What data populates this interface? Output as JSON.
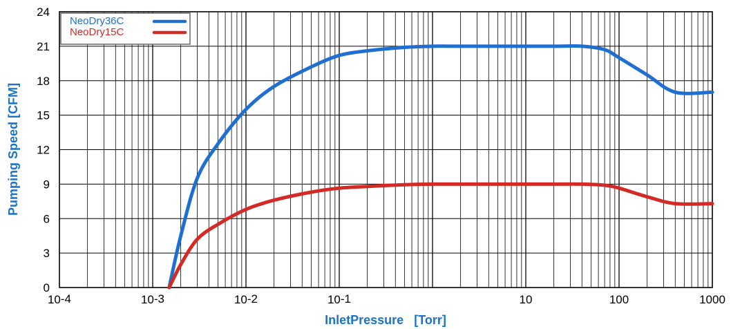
{
  "colors": {
    "series_blue": "#1f6fd2",
    "series_red": "#d42a26",
    "axis_title": "#1a73c8",
    "grid": "#000000",
    "legend_border": "#666666"
  },
  "chart_data": {
    "type": "line",
    "title": "",
    "xlabel": "InletPressure   [Torr]",
    "ylabel": "Pumping Speed [CFM]",
    "x_scale": "log",
    "xlim": [
      0.0001,
      1000
    ],
    "ylim": [
      0,
      24
    ],
    "grid": true,
    "legend_position": "top-left",
    "x_ticks": [
      {
        "value": 0.0001,
        "base": "10",
        "exp": "-4",
        "text": ""
      },
      {
        "value": 0.001,
        "base": "10",
        "exp": "-3",
        "text": ""
      },
      {
        "value": 0.01,
        "base": "10",
        "exp": "-2",
        "text": ""
      },
      {
        "value": 0.1,
        "base": "10",
        "exp": "-1",
        "text": ""
      },
      {
        "value": 10,
        "base": "",
        "exp": "",
        "text": "10"
      },
      {
        "value": 100,
        "base": "",
        "exp": "",
        "text": "100"
      },
      {
        "value": 1000,
        "base": "",
        "exp": "",
        "text": "1000"
      }
    ],
    "y_ticks": [
      0,
      3,
      6,
      9,
      12,
      15,
      18,
      21,
      24
    ],
    "series": [
      {
        "name": "NeoDry36C",
        "color": "#1f6fd2",
        "x": [
          0.0015,
          0.002,
          0.003,
          0.005,
          0.01,
          0.02,
          0.05,
          0.1,
          0.2,
          0.5,
          1,
          2,
          5,
          10,
          20,
          40,
          70,
          100,
          200,
          400,
          1000
        ],
        "y": [
          0,
          4.5,
          9.5,
          12.5,
          15.5,
          17.5,
          19.2,
          20.2,
          20.6,
          20.9,
          21,
          21,
          21,
          21,
          21,
          21,
          20.7,
          20.0,
          18.5,
          17.0,
          17.0
        ]
      },
      {
        "name": "NeoDry15C",
        "color": "#d42a26",
        "x": [
          0.0015,
          0.002,
          0.003,
          0.005,
          0.01,
          0.02,
          0.05,
          0.1,
          0.2,
          0.5,
          1,
          2,
          5,
          10,
          20,
          40,
          70,
          100,
          200,
          400,
          1000
        ],
        "y": [
          0,
          2.0,
          4.2,
          5.5,
          6.8,
          7.6,
          8.3,
          8.65,
          8.8,
          8.95,
          9,
          9,
          9,
          9,
          9,
          9,
          8.9,
          8.65,
          7.9,
          7.3,
          7.3
        ]
      }
    ]
  }
}
